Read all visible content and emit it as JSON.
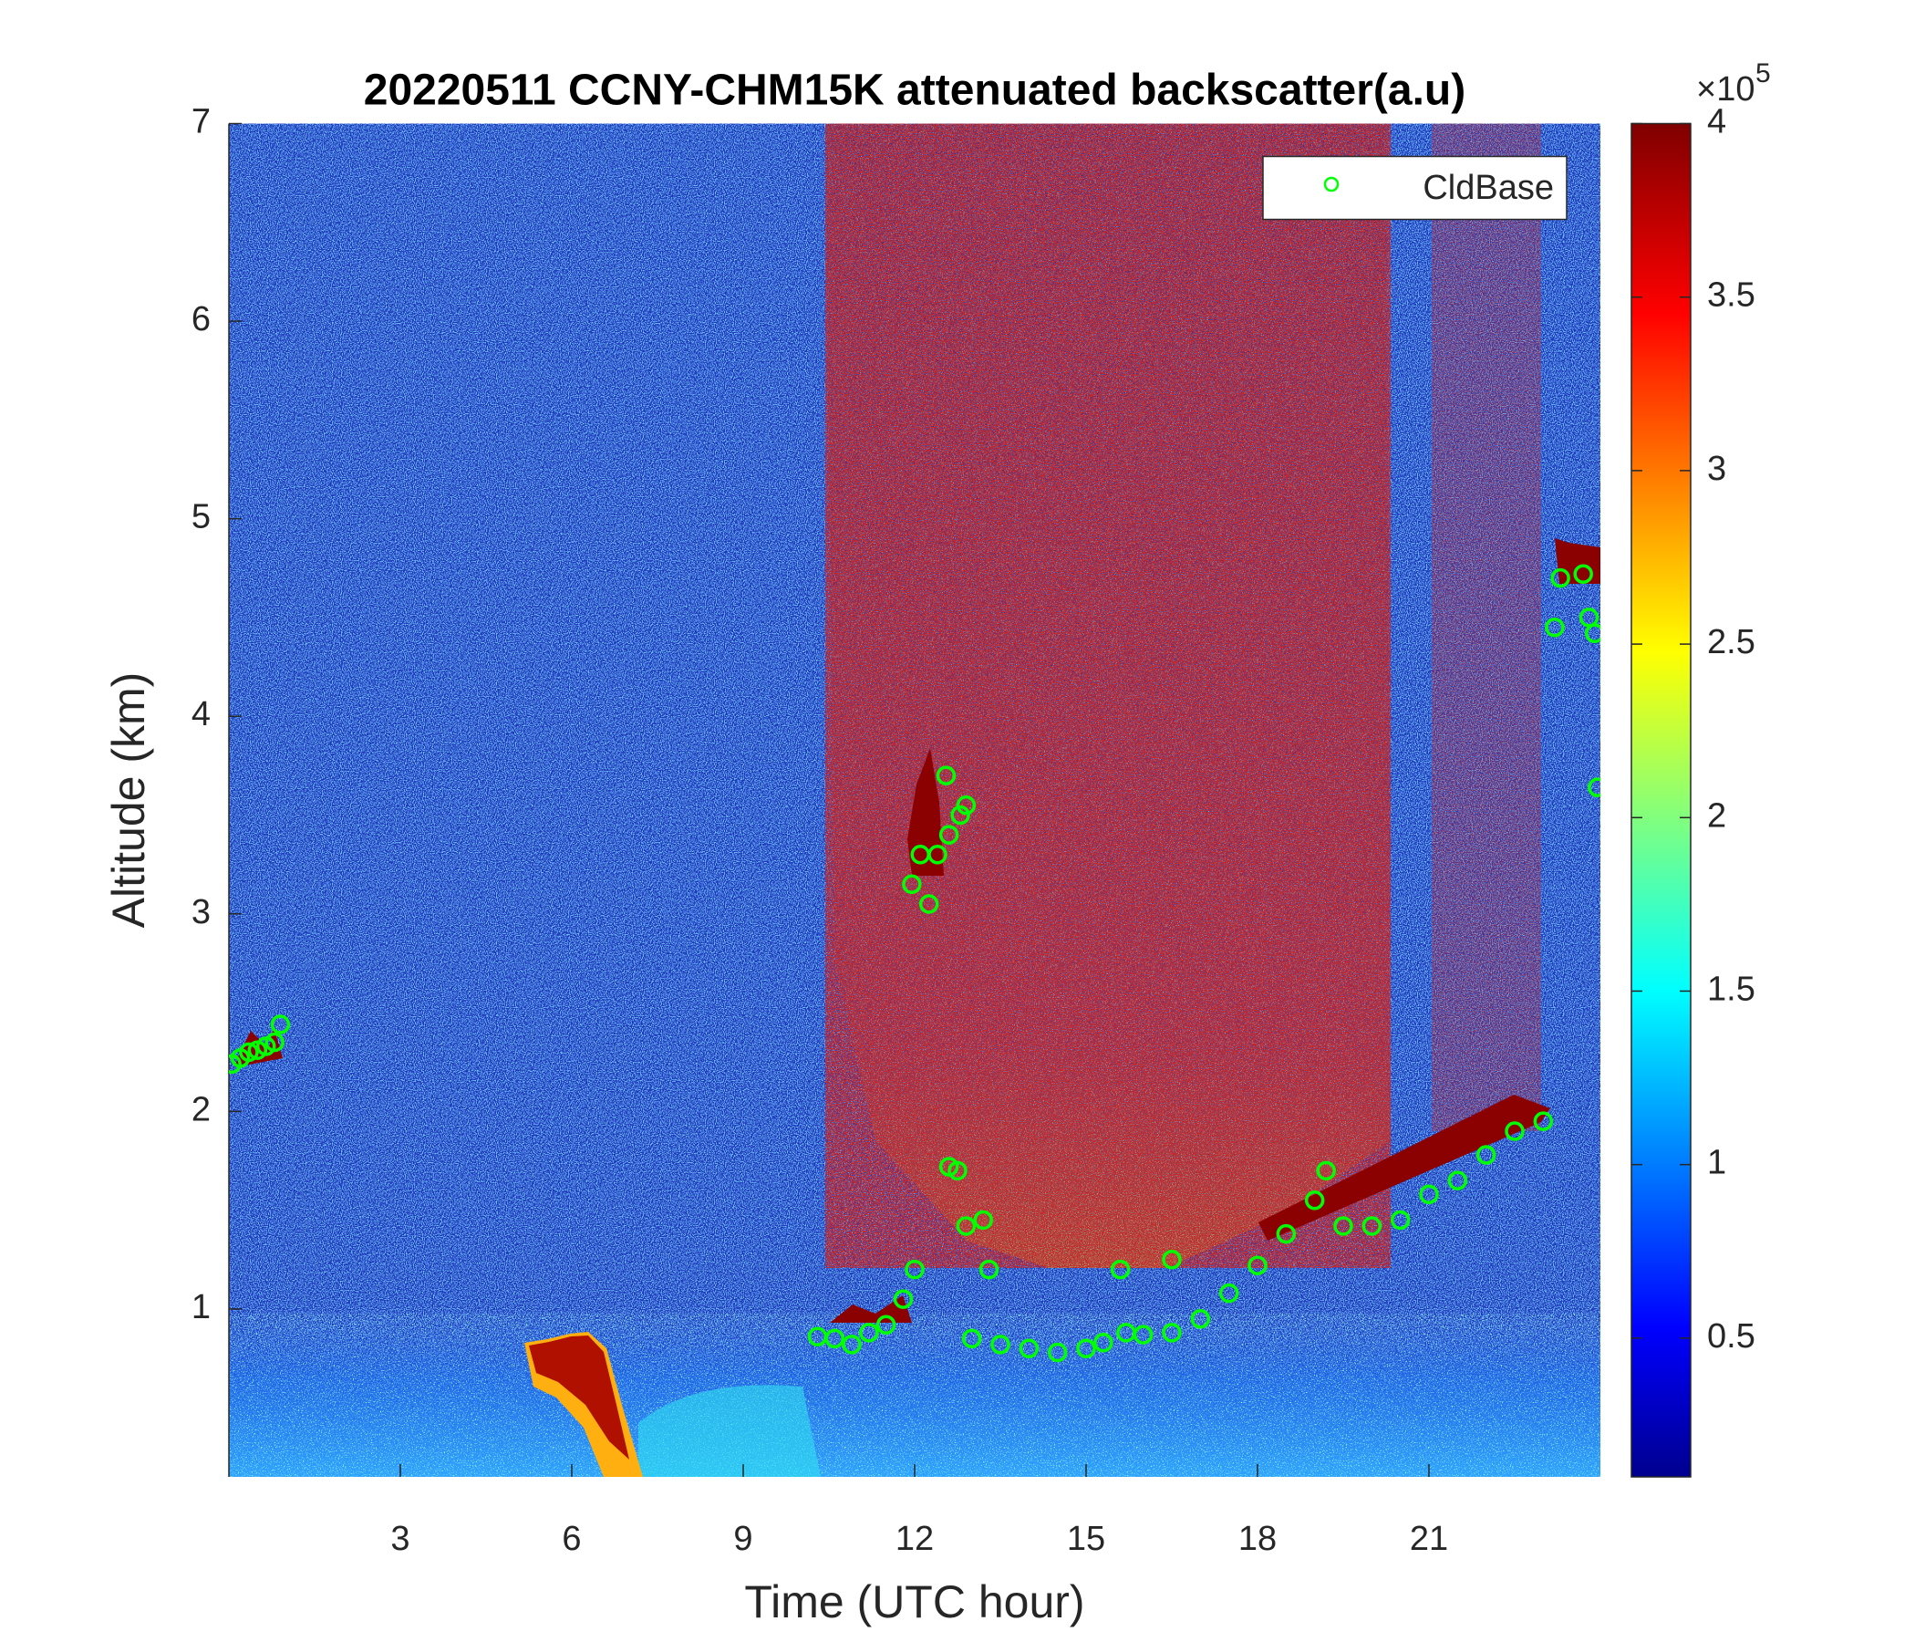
{
  "chart_data": {
    "type": "scatter",
    "title": "20220511 CCNY-CHM15K attenuated backscatter(a.u)",
    "xlabel": "Time (UTC hour)",
    "ylabel": "Altitude (km)",
    "xlim": [
      0,
      24
    ],
    "ylim": [
      0.15,
      7
    ],
    "xticks": [
      3,
      6,
      9,
      12,
      15,
      18,
      21
    ],
    "yticks": [
      1,
      2,
      3,
      4,
      5,
      6,
      7
    ],
    "legend": "northeast",
    "series": [
      {
        "name": "CldBase",
        "color": "#00ff00",
        "marker": "circle",
        "x": [
          0.05,
          0.2,
          0.35,
          0.5,
          0.65,
          0.8,
          0.9,
          10.3,
          10.6,
          10.9,
          11.2,
          11.5,
          11.8,
          12.0,
          11.95,
          12.1,
          12.25,
          12.4,
          12.6,
          12.8,
          12.9,
          12.55,
          12.6,
          12.75,
          12.9,
          13.0,
          13.3,
          13.2,
          13.5,
          14.0,
          14.5,
          15.0,
          15.3,
          15.7,
          15.6,
          16.0,
          16.5,
          16.5,
          17.0,
          17.5,
          18.0,
          18.5,
          19.0,
          19.2,
          19.5,
          20.0,
          20.5,
          21.0,
          21.5,
          22.0,
          22.5,
          23.0,
          23.2,
          23.3,
          23.7,
          23.8,
          23.9,
          23.95
        ],
        "values": [
          2.24,
          2.27,
          2.3,
          2.31,
          2.33,
          2.35,
          2.44,
          0.86,
          0.85,
          0.82,
          0.88,
          0.92,
          1.05,
          1.2,
          3.15,
          3.3,
          3.05,
          3.3,
          3.4,
          3.5,
          3.55,
          3.7,
          1.72,
          1.7,
          1.42,
          0.85,
          1.2,
          1.45,
          0.82,
          0.8,
          0.78,
          0.8,
          0.83,
          0.88,
          1.2,
          0.87,
          0.88,
          1.25,
          0.95,
          1.08,
          1.22,
          1.38,
          1.55,
          1.7,
          1.42,
          1.42,
          1.45,
          1.58,
          1.65,
          1.78,
          1.9,
          1.95,
          4.45,
          4.7,
          4.72,
          4.5,
          4.42,
          3.64
        ]
      }
    ],
    "colorbar": {
      "clim": [
        10000,
        400000
      ],
      "ticks": [
        {
          "value": 50000,
          "label": "0.5"
        },
        {
          "value": 100000,
          "label": "1"
        },
        {
          "value": 150000,
          "label": "1.5"
        },
        {
          "value": 200000,
          "label": "2"
        },
        {
          "value": 250000,
          "label": "2.5"
        },
        {
          "value": 300000,
          "label": "3"
        },
        {
          "value": 350000,
          "label": "3.5"
        },
        {
          "value": 400000,
          "label": "4"
        }
      ],
      "multiplier": "×10",
      "exponent": "5"
    }
  }
}
